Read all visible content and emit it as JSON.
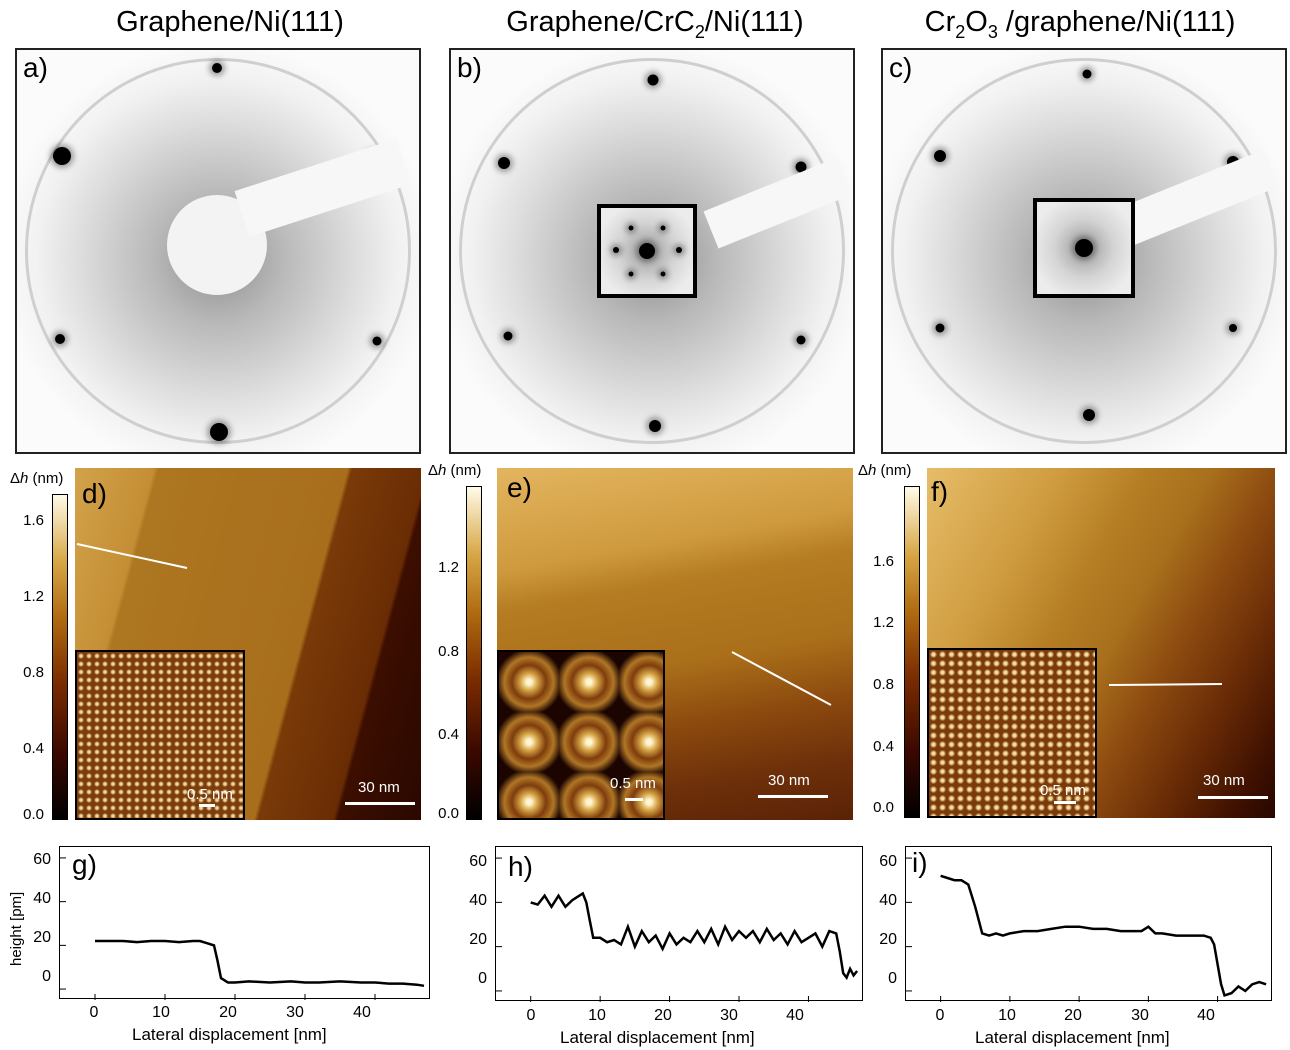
{
  "titles": {
    "col1": "Graphene/Ni(111)",
    "col2_pre": "Graphene/CrC",
    "col2_sub": "2",
    "col2_post": "/Ni(111)",
    "col3_pre": "Cr",
    "col3_sub1": "2",
    "col3_mid": "O",
    "col3_sub2": "3",
    "col3_post": " /graphene/Ni(111)"
  },
  "panels": {
    "a": "a)",
    "b": "b)",
    "c": "c)",
    "d": "d)",
    "e": "e)",
    "f": "f)",
    "g": "g)",
    "h": "h)",
    "i": "i)"
  },
  "colorbars": {
    "label_prefix": "Δ",
    "label_var": "h",
    "label_unit": " (nm)",
    "d_ticks": [
      "1.6",
      "1.2",
      "0.8",
      "0.4",
      "0.0"
    ],
    "e_ticks": [
      "1.2",
      "0.8",
      "0.4",
      "0.0"
    ],
    "f_ticks": [
      "1.6",
      "1.2",
      "0.8",
      "0.4",
      "0.0"
    ]
  },
  "scalebars": {
    "large": "30 nm",
    "small": "0.5 nm"
  },
  "plots": {
    "xlabel": "Lateral displacement [nm]",
    "ylabel": "height [pm]",
    "xticks": [
      "0",
      "10",
      "20",
      "30",
      "40"
    ],
    "yticks": [
      "60",
      "40",
      "20",
      "0"
    ]
  },
  "colors": {
    "stm_dark": "#3a0a00",
    "stm_mid": "#a45c12",
    "stm_light": "#d9a64a",
    "leed_spot": "#000000"
  },
  "chart_data": [
    {
      "type": "line",
      "panel": "g",
      "xlabel": "Lateral displacement [nm]",
      "ylabel": "height [pm]",
      "xlim": [
        -5,
        48
      ],
      "ylim": [
        -5,
        65
      ],
      "x": [
        0,
        2,
        4,
        6,
        8,
        10,
        12,
        14,
        15,
        16,
        17,
        17.5,
        18,
        19,
        20,
        22,
        25,
        28,
        30,
        32,
        35,
        38,
        40,
        42,
        44,
        46,
        47
      ],
      "y": [
        22,
        22,
        22,
        21.5,
        22,
        22,
        21.5,
        22,
        22,
        21,
        20,
        13,
        5,
        3,
        3,
        3.5,
        3,
        3.5,
        3,
        3,
        3.5,
        3,
        3,
        2.5,
        2.5,
        2,
        1.5
      ]
    },
    {
      "type": "line",
      "panel": "h",
      "xlabel": "Lateral displacement [nm]",
      "ylabel": "height [pm]",
      "xlim": [
        -5,
        48
      ],
      "ylim": [
        -5,
        65
      ],
      "x": [
        0,
        1,
        2,
        3,
        4,
        5,
        6,
        7,
        7.5,
        8,
        8.5,
        9,
        10,
        11,
        12,
        13,
        14,
        15,
        16,
        17,
        18,
        19,
        20,
        21,
        22,
        23,
        24,
        25,
        26,
        27,
        28,
        29,
        30,
        31,
        32,
        33,
        34,
        35,
        36,
        37,
        38,
        39,
        40,
        41,
        42,
        43,
        44,
        44.5,
        45,
        45.5,
        46,
        46.5,
        47
      ],
      "y": [
        40,
        39,
        43,
        38,
        43,
        38,
        41,
        43,
        44,
        40,
        32,
        24,
        24,
        22,
        23,
        21,
        29,
        20,
        27,
        22,
        25,
        19,
        26,
        21,
        24,
        22,
        27,
        22,
        28,
        21,
        29,
        23,
        27,
        24,
        27,
        22,
        28,
        23,
        26,
        21,
        27,
        22,
        24,
        26,
        20,
        27,
        26,
        18,
        8,
        6,
        10,
        7,
        9
      ]
    },
    {
      "type": "line",
      "panel": "i",
      "xlabel": "Lateral displacement [nm]",
      "ylabel": "height [pm]",
      "xlim": [
        -5,
        48
      ],
      "ylim": [
        -5,
        65
      ],
      "x": [
        0,
        1,
        2,
        3,
        4,
        5,
        5.5,
        6,
        7,
        8,
        9,
        10,
        12,
        14,
        16,
        18,
        20,
        22,
        24,
        26,
        28,
        29,
        30,
        31,
        32,
        34,
        36,
        38,
        39,
        39.5,
        40,
        40.5,
        41,
        42,
        43,
        44,
        45,
        46,
        47
      ],
      "y": [
        52,
        51,
        50,
        50,
        48,
        38,
        32,
        26,
        25,
        26,
        25,
        26,
        27,
        27,
        28,
        29,
        29,
        28,
        28,
        27,
        27,
        27,
        29,
        26,
        26,
        25,
        25,
        25,
        24,
        21,
        12,
        3,
        -2,
        -1,
        2,
        0,
        3,
        4,
        3
      ]
    }
  ]
}
